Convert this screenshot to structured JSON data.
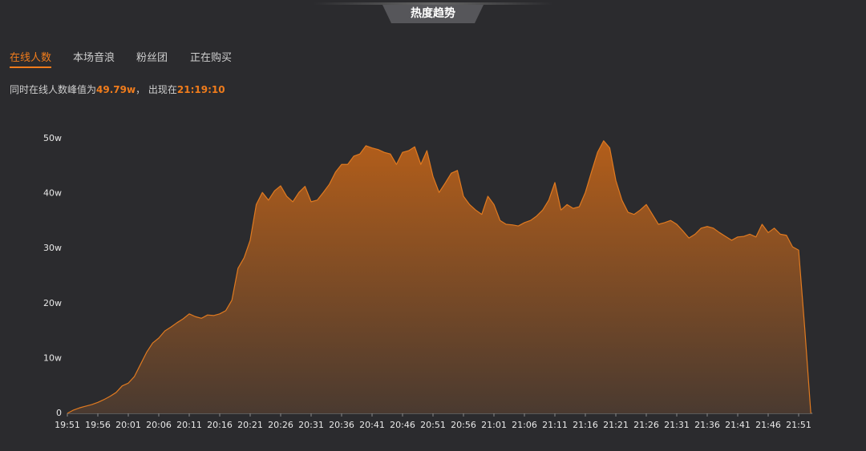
{
  "header": {
    "title": "热度趋势"
  },
  "tabs": [
    "在线人数",
    "本场音浪",
    "粉丝团",
    "正在购买"
  ],
  "summary": {
    "prefix": "同时在线人数峰值为",
    "peak": "49.79w",
    "middle": "， 出现在",
    "time": "21:19:10"
  },
  "chart_data": {
    "type": "area",
    "categories": [
      "19:51",
      null,
      null,
      null,
      null,
      "19:56",
      null,
      null,
      null,
      null,
      "20:01",
      null,
      null,
      null,
      null,
      "20:06",
      null,
      null,
      null,
      null,
      "20:11",
      null,
      null,
      null,
      null,
      "20:16",
      null,
      null,
      null,
      null,
      "20:21",
      null,
      null,
      null,
      null,
      "20:26",
      null,
      null,
      null,
      null,
      "20:31",
      null,
      null,
      null,
      null,
      "20:36",
      null,
      null,
      null,
      null,
      "20:41",
      null,
      null,
      null,
      null,
      "20:46",
      null,
      null,
      null,
      null,
      "20:51",
      null,
      null,
      null,
      null,
      "20:56",
      null,
      null,
      null,
      null,
      "21:01",
      null,
      null,
      null,
      null,
      "21:06",
      null,
      null,
      null,
      null,
      "21:11",
      null,
      null,
      null,
      null,
      "21:16",
      null,
      null,
      null,
      null,
      "21:21",
      null,
      null,
      null,
      null,
      "21:26",
      null,
      null,
      null,
      null,
      "21:31",
      null,
      null,
      null,
      null,
      "21:36",
      null,
      null,
      null,
      null,
      "21:41",
      null,
      null,
      null,
      null,
      "21:46",
      null,
      null,
      null,
      null,
      "21:51",
      null,
      null
    ],
    "values": [
      0,
      0.6,
      1.0,
      1.3,
      1.6,
      2.0,
      2.5,
      3.1,
      3.8,
      5.0,
      5.5,
      6.7,
      8.9,
      11.1,
      12.8,
      13.7,
      15.0,
      15.7,
      16.5,
      17.2,
      18.1,
      17.6,
      17.3,
      17.9,
      17.8,
      18.1,
      18.7,
      20.6,
      26.4,
      28.3,
      31.5,
      38.0,
      40.2,
      38.8,
      40.5,
      41.4,
      39.5,
      38.5,
      40.2,
      41.3,
      38.5,
      38.8,
      40.2,
      41.7,
      43.9,
      45.3,
      45.3,
      46.8,
      47.2,
      48.7,
      48.3,
      48.0,
      47.5,
      47.2,
      45.3,
      47.5,
      47.8,
      48.5,
      45.3,
      47.8,
      43.1,
      40.2,
      41.9,
      43.7,
      44.2,
      39.5,
      38.0,
      37.0,
      36.2,
      39.5,
      38.0,
      35.1,
      34.4,
      34.3,
      34.1,
      34.7,
      35.1,
      35.9,
      37.0,
      38.8,
      42.0,
      37.0,
      38.0,
      37.3,
      37.6,
      40.2,
      43.9,
      47.5,
      49.6,
      48.3,
      42.4,
      38.8,
      36.6,
      36.2,
      37.0,
      38.0,
      36.2,
      34.4,
      34.7,
      35.1,
      34.4,
      33.2,
      31.9,
      32.6,
      33.7,
      34.0,
      33.7,
      32.9,
      32.2,
      31.5,
      32.1,
      32.2,
      32.6,
      32.1,
      34.4,
      32.9,
      33.7,
      32.6,
      32.4,
      30.3,
      29.7,
      15.5,
      0
    ],
    "color": "#e07a20",
    "ylim": [
      0,
      50
    ],
    "yticks": [
      0,
      {
        "value": 10,
        "label": "10w"
      },
      {
        "value": 20,
        "label": "20w"
      },
      {
        "value": 30,
        "label": "30w"
      },
      {
        "value": 40,
        "label": "40w"
      },
      {
        "value": 50,
        "label": "50w"
      }
    ]
  }
}
